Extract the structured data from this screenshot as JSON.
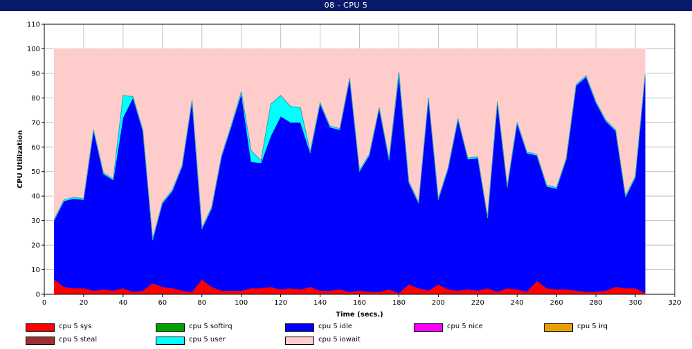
{
  "window": {
    "title": "08 - CPU 5"
  },
  "chart_data": {
    "type": "area",
    "stacked": true,
    "title": "08 - CPU 5",
    "xlabel": "Time (secs.)",
    "ylabel": "CPU Utilization",
    "xlim": [
      0,
      320
    ],
    "ylim": [
      0,
      110
    ],
    "xticks": [
      0,
      20,
      40,
      60,
      80,
      100,
      120,
      140,
      160,
      180,
      200,
      220,
      240,
      260,
      280,
      300,
      320
    ],
    "yticks": [
      0,
      10,
      20,
      30,
      40,
      50,
      60,
      70,
      80,
      90,
      100,
      110
    ],
    "grid": true,
    "legend_position": "bottom",
    "x": [
      5,
      10,
      15,
      20,
      25,
      30,
      35,
      40,
      45,
      50,
      55,
      60,
      65,
      70,
      75,
      80,
      85,
      90,
      95,
      100,
      105,
      110,
      115,
      120,
      125,
      130,
      135,
      140,
      145,
      150,
      155,
      160,
      165,
      170,
      175,
      180,
      185,
      190,
      195,
      200,
      205,
      210,
      215,
      220,
      225,
      230,
      235,
      240,
      245,
      250,
      255,
      260,
      265,
      270,
      275,
      280,
      285,
      290,
      295,
      300,
      305
    ],
    "series": [
      {
        "name": "cpu 5 sys",
        "color": "#ff0000",
        "values": [
          6,
          3,
          2.5,
          2.5,
          1.5,
          2,
          1.5,
          2.5,
          1,
          1.5,
          4.5,
          3,
          2.5,
          1.5,
          1,
          6,
          3,
          1.5,
          1.5,
          1.5,
          2.5,
          2.5,
          3,
          2,
          2.5,
          2,
          3,
          1.5,
          1.5,
          2,
          1,
          1.5,
          1,
          1,
          2,
          0.5,
          4,
          2.5,
          1.5,
          4,
          2,
          1.5,
          2,
          1.5,
          2.5,
          1,
          2.5,
          2,
          1,
          5.5,
          2.5,
          2,
          2,
          1.5,
          1,
          1,
          1.5,
          3,
          2.5,
          2.5,
          0.5
        ]
      },
      {
        "name": "cpu 5 softirq",
        "color": "#00a000",
        "values": [
          0,
          0,
          0,
          0,
          0,
          0,
          0,
          0,
          0,
          0,
          0,
          0,
          0,
          0,
          0,
          0,
          0,
          0,
          0,
          0,
          0,
          0,
          0,
          0,
          0,
          0,
          0,
          0,
          0,
          0,
          0,
          0,
          0,
          0,
          0,
          0,
          0,
          0,
          0,
          0,
          0,
          0,
          0,
          0,
          0,
          0,
          0,
          0,
          0,
          0,
          0,
          0,
          0,
          0,
          0,
          0,
          0,
          0,
          0,
          0,
          0
        ]
      },
      {
        "name": "cpu 5 idle",
        "color": "#0000ff",
        "values": [
          24,
          35,
          36.5,
          36,
          65,
          47,
          45,
          69.5,
          79,
          65,
          17.5,
          34,
          39.5,
          50.5,
          77.5,
          20.5,
          32,
          54.5,
          67,
          80,
          51.5,
          51,
          61.5,
          70.5,
          67.5,
          68,
          54.5,
          76,
          66.5,
          65,
          86.5,
          48.5,
          55.5,
          74.5,
          52.5,
          88.5,
          41.5,
          34.5,
          78,
          34.5,
          49,
          69.5,
          53,
          54,
          28.5,
          77,
          41,
          67.5,
          56.5,
          51,
          41.5,
          41,
          53,
          83.5,
          87.5,
          77,
          69,
          63.5,
          37,
          45,
          88.5
        ]
      },
      {
        "name": "cpu 5 nice",
        "color": "#ff00ff",
        "values": [
          0,
          0,
          0,
          0,
          0,
          0,
          0,
          0,
          0,
          0,
          0,
          0,
          0,
          0,
          0,
          0,
          0,
          0,
          0,
          0,
          0,
          0,
          0,
          0,
          0,
          0,
          0,
          0,
          0,
          0,
          0,
          0,
          0,
          0,
          0,
          0,
          0,
          0,
          0,
          0,
          0,
          0,
          0,
          0,
          0,
          0,
          0,
          0,
          0,
          0,
          0,
          0,
          0,
          0,
          0,
          0,
          0,
          0,
          0,
          0,
          0
        ]
      },
      {
        "name": "cpu 5 irq",
        "color": "#e8a000",
        "values": [
          0,
          0,
          0,
          0,
          0,
          0,
          0,
          0,
          0,
          0,
          0,
          0,
          0,
          0,
          0,
          0,
          0,
          0,
          0,
          0,
          0,
          0,
          0,
          0,
          0,
          0,
          0,
          0,
          0,
          0,
          0,
          0,
          0,
          0,
          0,
          0,
          0,
          0,
          0,
          0,
          0,
          0,
          0,
          0,
          0,
          0,
          0,
          0,
          0,
          0,
          0,
          0,
          0,
          0,
          0,
          0,
          0,
          0,
          0,
          0,
          0
        ]
      },
      {
        "name": "cpu 5 steal",
        "color": "#a03030",
        "values": [
          0,
          0,
          0,
          0,
          0,
          0,
          0,
          0,
          0,
          0,
          0,
          0,
          0,
          0,
          0,
          0,
          0,
          0,
          0,
          0,
          0,
          0,
          0,
          0,
          0,
          0,
          0,
          0,
          0,
          0,
          0,
          0,
          0,
          0,
          0,
          0,
          0,
          0,
          0,
          0,
          0,
          0,
          0,
          0,
          0,
          0,
          0,
          0,
          0,
          0,
          0,
          0,
          0,
          0,
          0,
          0,
          0,
          0,
          0,
          0,
          0
        ]
      },
      {
        "name": "cpu 5 user",
        "color": "#00ffff",
        "values": [
          0.5,
          0.5,
          0.5,
          0.5,
          0.5,
          0.5,
          0.5,
          9,
          0.5,
          0.5,
          0.5,
          0.5,
          0.5,
          0.5,
          0.5,
          0.5,
          0.5,
          0.5,
          0.5,
          1,
          4.5,
          1,
          13,
          8.5,
          6.5,
          6,
          0.5,
          0.5,
          0.5,
          0.5,
          0.5,
          0.5,
          0.5,
          0.5,
          0.5,
          1.5,
          0.5,
          0.5,
          0.5,
          0.5,
          0.5,
          0.5,
          0.5,
          0.5,
          0.5,
          0.5,
          0.5,
          0.5,
          0.5,
          0.5,
          0.5,
          0.5,
          0.5,
          0.5,
          0.5,
          0.5,
          0.5,
          0.5,
          0.5,
          0.5,
          0.5
        ]
      },
      {
        "name": "cpu 5 iowait",
        "color": "#ffcccc",
        "values": [
          69.5,
          61.5,
          60.5,
          61,
          33,
          50.5,
          53,
          19,
          19.5,
          33,
          77.5,
          62.5,
          57.5,
          47.5,
          21,
          73,
          64.5,
          43.5,
          31,
          17.5,
          41.5,
          45.5,
          22.5,
          19,
          23.5,
          24,
          42,
          22,
          31.5,
          32.5,
          12,
          49.5,
          43,
          24,
          45,
          9.5,
          54,
          62.5,
          20,
          61,
          48.5,
          28.5,
          44.5,
          44,
          68.5,
          21.5,
          56,
          30,
          42,
          43,
          55.5,
          56.5,
          44.5,
          14.5,
          11,
          21.5,
          29,
          33,
          60,
          52,
          10.5
        ]
      }
    ]
  }
}
